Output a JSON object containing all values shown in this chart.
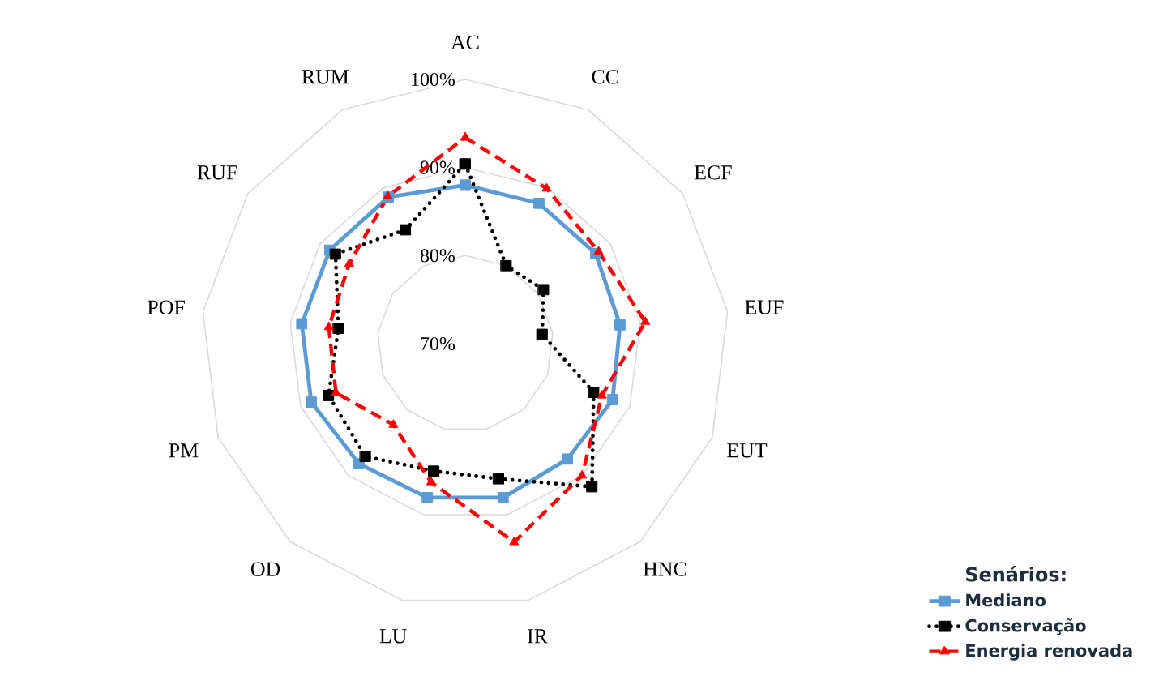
{
  "chart_data": {
    "type": "radar",
    "categories": [
      "AC",
      "CC",
      "ECF",
      "EUF",
      "EUT",
      "HNC",
      "IR",
      "LU",
      "OD",
      "PM",
      "POF",
      "RUF",
      "RUM"
    ],
    "series": [
      {
        "name": "Mediano",
        "color": "#5b9bd5",
        "marker": "square",
        "line_style": "solid",
        "values": [
          88.0,
          88.0,
          88.0,
          87.7,
          87.9,
          87.5,
          88.0,
          88.0,
          88.2,
          88.7,
          88.7,
          88.7,
          88.8
        ]
      },
      {
        "name": "Conservação",
        "color": "#000000",
        "marker": "square",
        "line_style": "dotted",
        "values": [
          90.4,
          80.0,
          80.8,
          78.8,
          85.6,
          91.7,
          85.8,
          84.9,
          87.1,
          86.6,
          84.5,
          87.9,
          84.6
        ]
      },
      {
        "name": "Energia renovada",
        "color": "#ff0000",
        "marker": "triangle",
        "line_style": "dashed",
        "values": [
          93.4,
          89.9,
          88.4,
          90.6,
          86.6,
          90.0,
          93.2,
          86.2,
          82.3,
          85.7,
          85.6,
          86.0,
          88.9
        ]
      }
    ],
    "ylim": [
      70,
      100
    ],
    "yticks": [
      {
        "value": 70,
        "label": "70%"
      },
      {
        "value": 80,
        "label": "80%"
      },
      {
        "value": 90,
        "label": "90%"
      },
      {
        "value": 100,
        "label": "100%"
      }
    ],
    "grid": true,
    "legend": "bottom right",
    "legend_title": "Senários:"
  }
}
